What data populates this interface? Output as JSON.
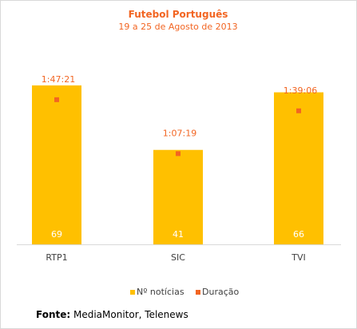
{
  "chart_data": {
    "type": "bar",
    "title": "Futebol Português",
    "subtitle": "19 a 25 de Agosto de 2013",
    "categories": [
      "RTP1",
      "SIC",
      "TVI"
    ],
    "series": [
      {
        "name": "Nº notícias",
        "type": "bar",
        "color": "#ffc000",
        "values": [
          69,
          41,
          66
        ]
      },
      {
        "name": "Duração",
        "type": "marker",
        "color": "#f26522",
        "values": [
          "1:47:21",
          "1:07:19",
          "1:39:06"
        ],
        "seconds": [
          6441,
          4039,
          5946
        ]
      }
    ],
    "ylim": [
      0,
      78
    ],
    "y2lim": [
      0,
      8000
    ],
    "legend_position": "bottom",
    "grid": false
  },
  "source": {
    "label": "Fonte:",
    "text": " MediaMonitor, Telenews"
  },
  "colors": {
    "title": "#f26522",
    "bar": "#ffc000",
    "marker": "#f26522",
    "axis": "#d9d9d9",
    "label": "#404040",
    "bar_label": "#ffffff"
  }
}
